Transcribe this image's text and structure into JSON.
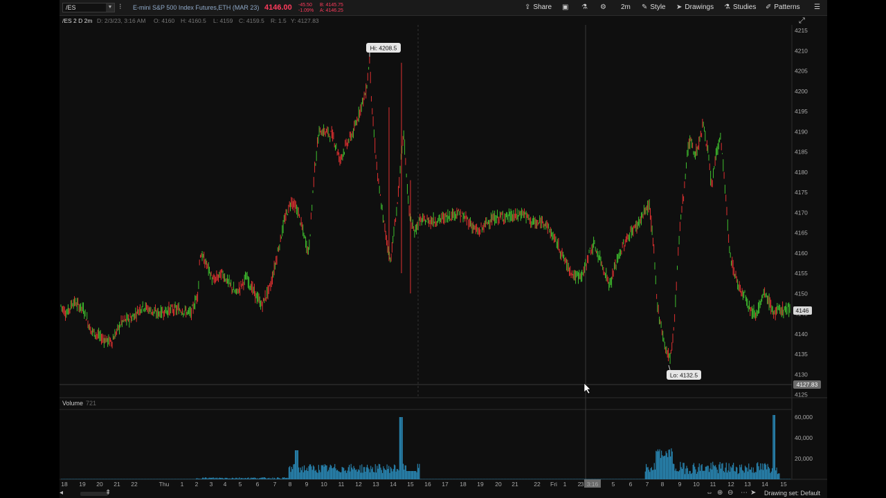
{
  "toolbar": {
    "symbol": "/ES",
    "title": "E-mini S&P 500 Index Futures,ETH (MAR 23)",
    "last_price": "4146.00",
    "change": "-45.50",
    "change_pct": "-1.09%",
    "bid": "B: 4145.75",
    "ask": "A: 4146.25",
    "share_label": "Share",
    "timeframe_label": "2m",
    "style_label": "Style",
    "drawings_label": "Drawings",
    "studies_label": "Studies",
    "patterns_label": "Patterns",
    "accent_color": "#ff3b5c"
  },
  "info_bar": {
    "symbol_period": "/ES 2 D 2m",
    "date": "D: 2/3/23, 3:16 AM",
    "open": "O: 4160",
    "high": "H: 4160.5",
    "low": "L: 4159",
    "close": "C: 4159.5",
    "range": "R: 1.5",
    "y_value": "Y: 4127.83"
  },
  "price_panel": {
    "hi_label": "Hi: 4208.5",
    "lo_label": "Lo: 4132.5",
    "current_price_tag": "4146",
    "cursor_price_tag": "4127.83",
    "y_axis_ticks": [
      "4215",
      "4210",
      "4205",
      "4200",
      "4195",
      "4190",
      "4185",
      "4180",
      "4175",
      "4170",
      "4165",
      "4160",
      "4155",
      "4150",
      "4145",
      "4140",
      "4135",
      "4130",
      "4125"
    ],
    "up_color": "#3fbf2e",
    "down_color": "#e03030"
  },
  "volume_panel": {
    "label": "Volume",
    "value": "721",
    "y_axis_ticks": [
      "60,000",
      "40,000",
      "20,000"
    ],
    "bar_color": "#2a8ab8"
  },
  "time_axis": {
    "labels": [
      "18",
      "19",
      "20",
      "21",
      "22",
      "Thu",
      "1",
      "2",
      "3",
      "4",
      "5",
      "6",
      "7",
      "8",
      "9",
      "10",
      "11",
      "12",
      "13",
      "14",
      "15",
      "16",
      "17",
      "18",
      "19",
      "20",
      "21",
      "22",
      "Fri",
      "1",
      "2",
      "3",
      "3:16",
      "5",
      "6",
      "7",
      "8",
      "9",
      "10",
      "11",
      "12",
      "13",
      "14",
      "15"
    ]
  },
  "status_bar": {
    "drawing_set": "Drawing set: Default"
  }
}
